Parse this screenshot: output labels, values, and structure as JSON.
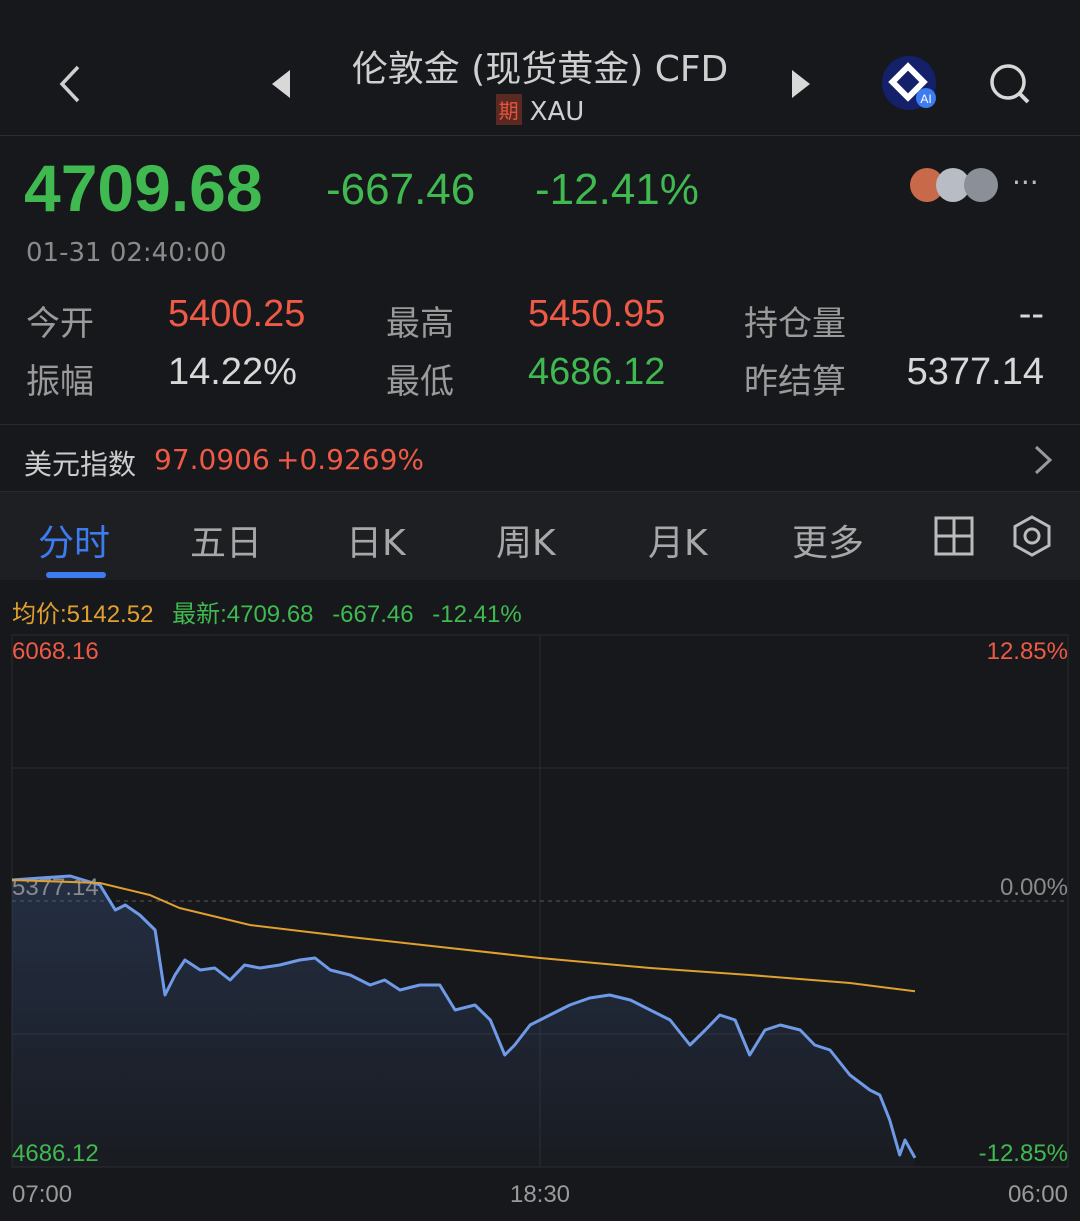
{
  "header": {
    "title": "伦敦金 (现货黄金) CFD",
    "badge": "期",
    "symbol": "XAU",
    "icons": [
      "back-chevron-icon",
      "prev-triangle-icon",
      "next-triangle-icon",
      "ai-assistant-icon",
      "search-icon"
    ],
    "ai_badge": "AI"
  },
  "quote": {
    "price": "4709.68",
    "change": "-667.46",
    "change_pct": "-12.41%",
    "datetime": "01-31 02:40:00",
    "more": "···"
  },
  "stats": [
    {
      "label": "今开",
      "value": "5400.25",
      "color": "red"
    },
    {
      "label": "最高",
      "value": "5450.95",
      "color": "red"
    },
    {
      "label": "持仓量",
      "value": "--",
      "color": "white"
    },
    {
      "label": "振幅",
      "value": "14.22%",
      "color": "white"
    },
    {
      "label": "最低",
      "value": "4686.12",
      "color": "green"
    },
    {
      "label": "昨结算",
      "value": "5377.14",
      "color": "white"
    }
  ],
  "dollar_index": {
    "label": "美元指数",
    "value": "97.0906",
    "change": "+0.9269%"
  },
  "tabs": [
    {
      "label": "分时",
      "active": true
    },
    {
      "label": "五日"
    },
    {
      "label": "日K"
    },
    {
      "label": "周K"
    },
    {
      "label": "月K"
    },
    {
      "label": "更多"
    }
  ],
  "colors": {
    "up": "#ee5a45",
    "down": "#3fb950",
    "accent": "#3d7bf0",
    "price_line": "#6f9ae8",
    "avg_line": "#e0a030"
  },
  "chart_data": {
    "type": "line",
    "legend": {
      "avg": "均价:5142.52",
      "latest": "最新:4709.68",
      "change": "-667.46",
      "change_pct": "-12.41%"
    },
    "ylim": [
      4686.12,
      6068.16
    ],
    "y_labels": {
      "top": "6068.16",
      "mid": "5377.14",
      "bottom": "4686.12"
    },
    "pct_labels": {
      "top": "12.85%",
      "mid": "0.00%",
      "bottom": "-12.85%"
    },
    "x_ticks": [
      "07:00",
      "18:30",
      "06:00"
    ],
    "grid": true,
    "series": [
      {
        "key": "price",
        "points": [
          [
            "07:00",
            5431.7
          ],
          [
            "07:37",
            5436.9
          ],
          [
            "08:16",
            5442.1
          ],
          [
            "08:55",
            5418.7
          ],
          [
            "09:15",
            5353.8
          ],
          [
            "09:28",
            5366.7
          ],
          [
            "09:47",
            5340.8
          ],
          [
            "10:07",
            5301.8
          ],
          [
            "10:20",
            5133.0
          ],
          [
            "10:33",
            5184.9
          ],
          [
            "10:46",
            5223.9
          ],
          [
            "11:06",
            5197.9
          ],
          [
            "11:25",
            5203.1
          ],
          [
            "11:45",
            5172.0
          ],
          [
            "12:04",
            5210.9
          ],
          [
            "12:24",
            5203.1
          ],
          [
            "12:50",
            5210.9
          ],
          [
            "13:16",
            5223.9
          ],
          [
            "13:36",
            5229.0
          ],
          [
            "13:56",
            5197.9
          ],
          [
            "14:22",
            5184.9
          ],
          [
            "14:48",
            5158.9
          ],
          [
            "15:07",
            5172.0
          ],
          [
            "15:27",
            5145.9
          ],
          [
            "15:53",
            5158.9
          ],
          [
            "16:19",
            5158.9
          ],
          [
            "16:39",
            5094.0
          ],
          [
            "17:05",
            5107.0
          ],
          [
            "17:25",
            5068.0
          ],
          [
            "17:44",
            4977.1
          ],
          [
            "17:57",
            5003.1
          ],
          [
            "18:17",
            5055.1
          ],
          [
            "18:43",
            5081.0
          ],
          [
            "19:09",
            5107.0
          ],
          [
            "19:35",
            5125.2
          ],
          [
            "20:01",
            5133.0
          ],
          [
            "20:28",
            5120.0
          ],
          [
            "20:54",
            5094.0
          ],
          [
            "21:20",
            5068.0
          ],
          [
            "21:46",
            5003.1
          ],
          [
            "22:06",
            5042.0
          ],
          [
            "22:25",
            5081.0
          ],
          [
            "22:45",
            5068.0
          ],
          [
            "23:04",
            4977.1
          ],
          [
            "23:24",
            5042.0
          ],
          [
            "23:44",
            5055.0
          ],
          [
            "00:10",
            5042.0
          ],
          [
            "00:29",
            5003.1
          ],
          [
            "00:49",
            4990.1
          ],
          [
            "01:15",
            4925.2
          ],
          [
            "01:41",
            4886.2
          ],
          [
            "01:54",
            4873.2
          ],
          [
            "02:07",
            4808.3
          ],
          [
            "02:20",
            4717.4
          ],
          [
            "02:27",
            4756.3
          ],
          [
            "02:40",
            4709.68
          ]
        ]
      },
      {
        "key": "average",
        "points": [
          [
            "07:00",
            5431.7
          ],
          [
            "08:55",
            5423.9
          ],
          [
            "10:00",
            5392.7
          ],
          [
            "10:39",
            5359.0
          ],
          [
            "12:11",
            5314.8
          ],
          [
            "14:22",
            5283.6
          ],
          [
            "16:32",
            5255.1
          ],
          [
            "18:30",
            5229.0
          ],
          [
            "20:54",
            5203.1
          ],
          [
            "23:04",
            5184.9
          ],
          [
            "01:15",
            5164.1
          ],
          [
            "02:40",
            5142.52
          ]
        ]
      }
    ]
  }
}
